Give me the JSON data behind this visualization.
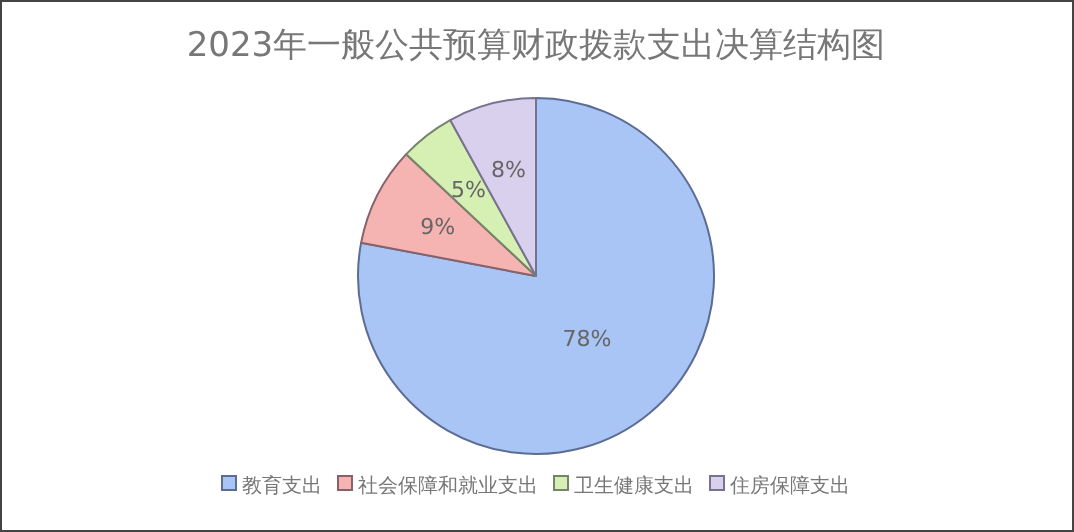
{
  "chart_data": {
    "type": "pie",
    "title": "2023年一般公共预算财政拨款支出决算结构图",
    "categories": [
      "教育支出",
      "社会保障和就业支出",
      "卫生健康支出",
      "住房保障支出"
    ],
    "values": [
      78,
      9,
      5,
      8
    ],
    "value_labels": [
      "78%",
      "9%",
      "5%",
      "8%"
    ],
    "colors": [
      "#a9c5f5",
      "#f5b3b1",
      "#d6efb3",
      "#d9d0ee"
    ],
    "legend": "bottom"
  }
}
